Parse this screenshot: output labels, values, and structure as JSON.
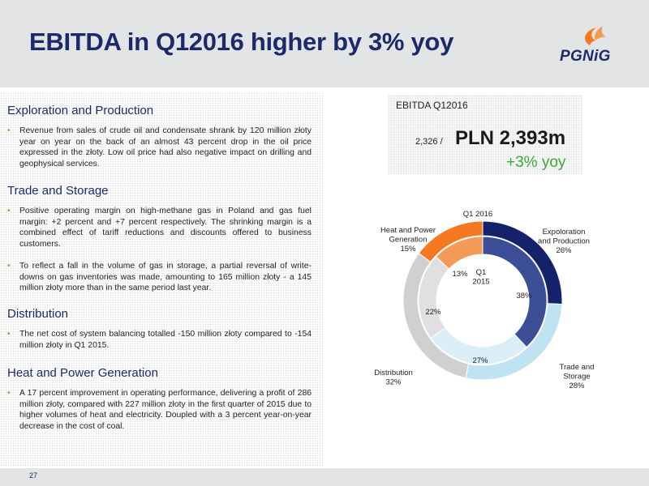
{
  "header": {
    "title": "EBITDA in Q12016 higher by 3% yoy",
    "logo_text": "PGNiG"
  },
  "sections": [
    {
      "title": "Exploration and Production",
      "bullets": [
        "Revenue from sales of crude oil and condensate shrank by 120 million złoty year on year on the back of an almost 43 percent drop in the oil price expressed in the złoty. Low oil price had also negative impact on drilling and geophysical services."
      ]
    },
    {
      "title": "Trade and Storage",
      "bullets": [
        "Positive operating margin on high-methane gas in Poland and gas fuel margin: +2 percent and +7 percent respectively. The shrinking margin is a combined effect of tariff reductions and discounts offered to business customers.",
        "To reflect a fall in the volume of gas in storage, a partial reversal of write-downs on gas inventories was made, amounting to 165 million złoty - a 145 million złoty more than in the same period last year."
      ]
    },
    {
      "title": "Distribution",
      "bullets": [
        "The net cost of system balancing totalled -150 million złoty compared to -154 million złoty in Q1 2015."
      ]
    },
    {
      "title": "Heat and Power Generation",
      "bullets": [
        "A 17 percent improvement in operating performance, delivering a profit of 286 million złoty, compared with 227 million złoty in the first quarter of 2015 due to higher volumes of heat and electricity. Doupled with a 3 percent year-on-year decrease in the cost of coal."
      ]
    }
  ],
  "kpi": {
    "label": "EBITDA Q12016",
    "previous": "2,326 /",
    "value": "PLN 2,393m",
    "change": "+3% yoy"
  },
  "chart_data": {
    "type": "pie",
    "title": "Q1 2016",
    "inner_label": "Q1\n2015",
    "categories": [
      "Exploration and Production",
      "Trade and Storage",
      "Distribution",
      "Heat and Power Generation"
    ],
    "series": [
      {
        "name": "Q1 2016",
        "values": [
          26,
          28,
          32,
          15
        ]
      },
      {
        "name": "Q1 2015",
        "values": [
          38,
          27,
          22,
          13
        ]
      }
    ],
    "outer_labels": [
      "Expoloration\nand Production\n26%",
      "Trade and\nStorage\n28%",
      "Distribution\n32%",
      "Heat and Power\nGeneration\n15%"
    ],
    "inner_value_labels": [
      "38%",
      "27%",
      "22%",
      "13%"
    ],
    "colors": [
      "#13226b",
      "#bfe3f2",
      "#cfd0d2",
      "#f47920"
    ],
    "inner_colors": [
      "#3c4f96",
      "#dbeef7",
      "#e0e0e2",
      "#f39a57"
    ]
  },
  "footer": {
    "page": "27"
  }
}
